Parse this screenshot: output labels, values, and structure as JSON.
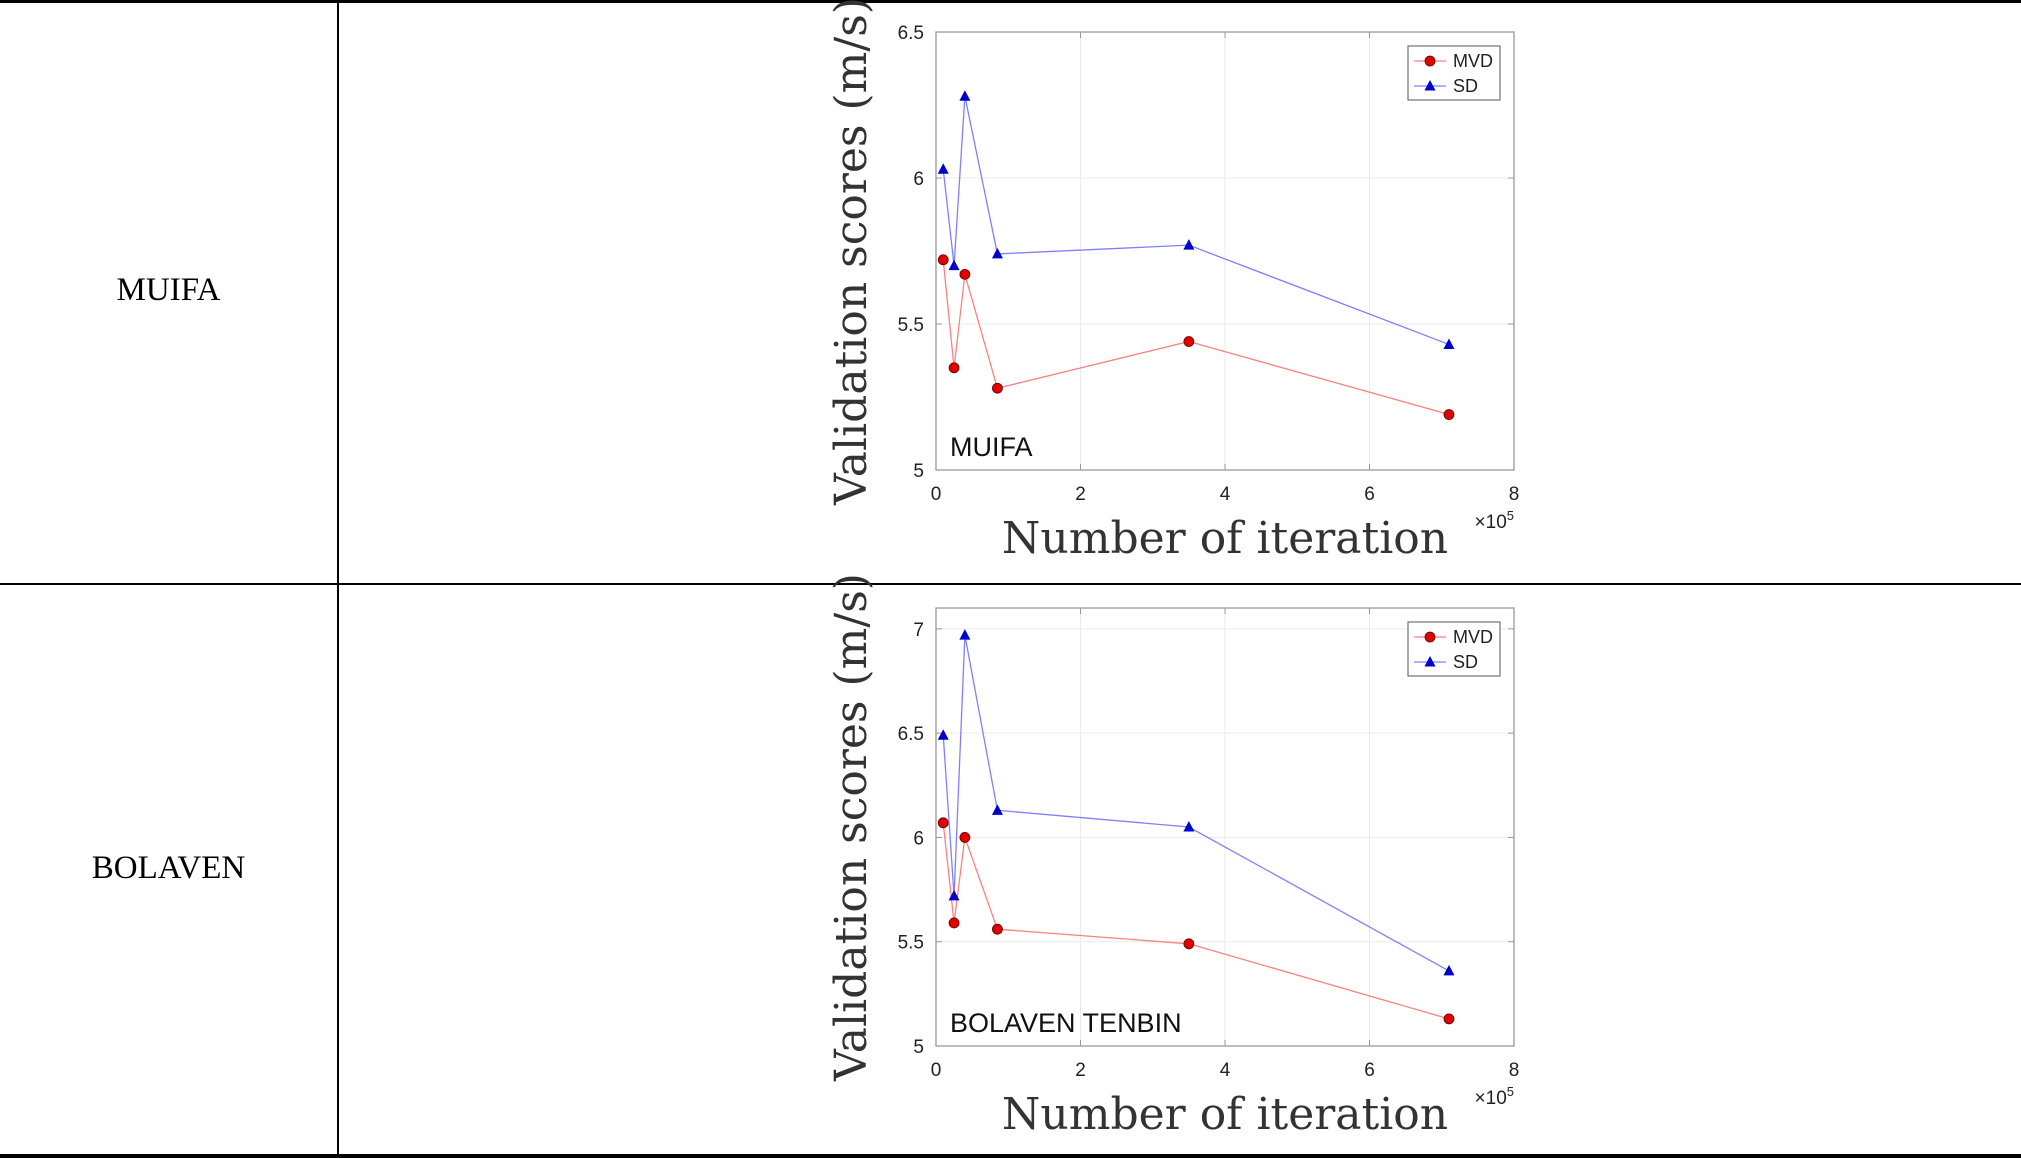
{
  "rows": [
    {
      "label": "MUIFA",
      "chart_data": {
        "type": "line",
        "xlabel": "Number of iteration",
        "ylabel": "Validation scores (m/s)",
        "x_multiplier": "×10",
        "x_multiplier_exp": "5",
        "annotation": "MUIFA",
        "xlim": [
          0,
          8
        ],
        "ylim": [
          5,
          6.5
        ],
        "xticks": [
          0,
          2,
          4,
          6,
          8
        ],
        "xtick_labels": [
          "0",
          "2",
          "4",
          "6",
          "8"
        ],
        "yticks": [
          5,
          5.5,
          6,
          6.5
        ],
        "ytick_labels": [
          "5",
          "5.5",
          "6",
          "6.5"
        ],
        "grid": true,
        "legend_position": "top-right",
        "x": [
          0.1,
          0.25,
          0.4,
          0.85,
          3.5,
          7.1
        ],
        "series": [
          {
            "name": "MVD",
            "values": [
              5.72,
              5.35,
              5.67,
              5.28,
              5.44,
              5.19
            ],
            "color": "#ff8080",
            "marker_color": "#e00000",
            "marker": "circle"
          },
          {
            "name": "SD",
            "values": [
              6.03,
              5.7,
              6.28,
              5.74,
              5.77,
              5.43
            ],
            "color": "#8080ff",
            "marker_color": "#0000cc",
            "marker": "triangle"
          }
        ]
      }
    },
    {
      "label": "BOLAVEN",
      "chart_data": {
        "type": "line",
        "xlabel": "Number of iteration",
        "ylabel": "Validation scores (m/s)",
        "x_multiplier": "×10",
        "x_multiplier_exp": "5",
        "annotation": "BOLAVEN TENBIN",
        "xlim": [
          0,
          8
        ],
        "ylim": [
          5,
          7.1
        ],
        "xticks": [
          0,
          2,
          4,
          6,
          8
        ],
        "xtick_labels": [
          "0",
          "2",
          "4",
          "6",
          "8"
        ],
        "yticks": [
          5,
          5.5,
          6,
          6.5,
          7
        ],
        "ytick_labels": [
          "5",
          "5.5",
          "6",
          "6.5",
          "7"
        ],
        "grid": true,
        "legend_position": "top-right",
        "x": [
          0.1,
          0.25,
          0.4,
          0.85,
          3.5,
          7.1
        ],
        "series": [
          {
            "name": "MVD",
            "values": [
              6.07,
              5.59,
              6.0,
              5.56,
              5.49,
              5.13
            ],
            "color": "#ff8080",
            "marker_color": "#e00000",
            "marker": "circle"
          },
          {
            "name": "SD",
            "values": [
              6.49,
              5.72,
              6.97,
              6.13,
              6.05,
              5.36
            ],
            "color": "#8080ff",
            "marker_color": "#0000cc",
            "marker": "triangle"
          }
        ]
      }
    }
  ]
}
